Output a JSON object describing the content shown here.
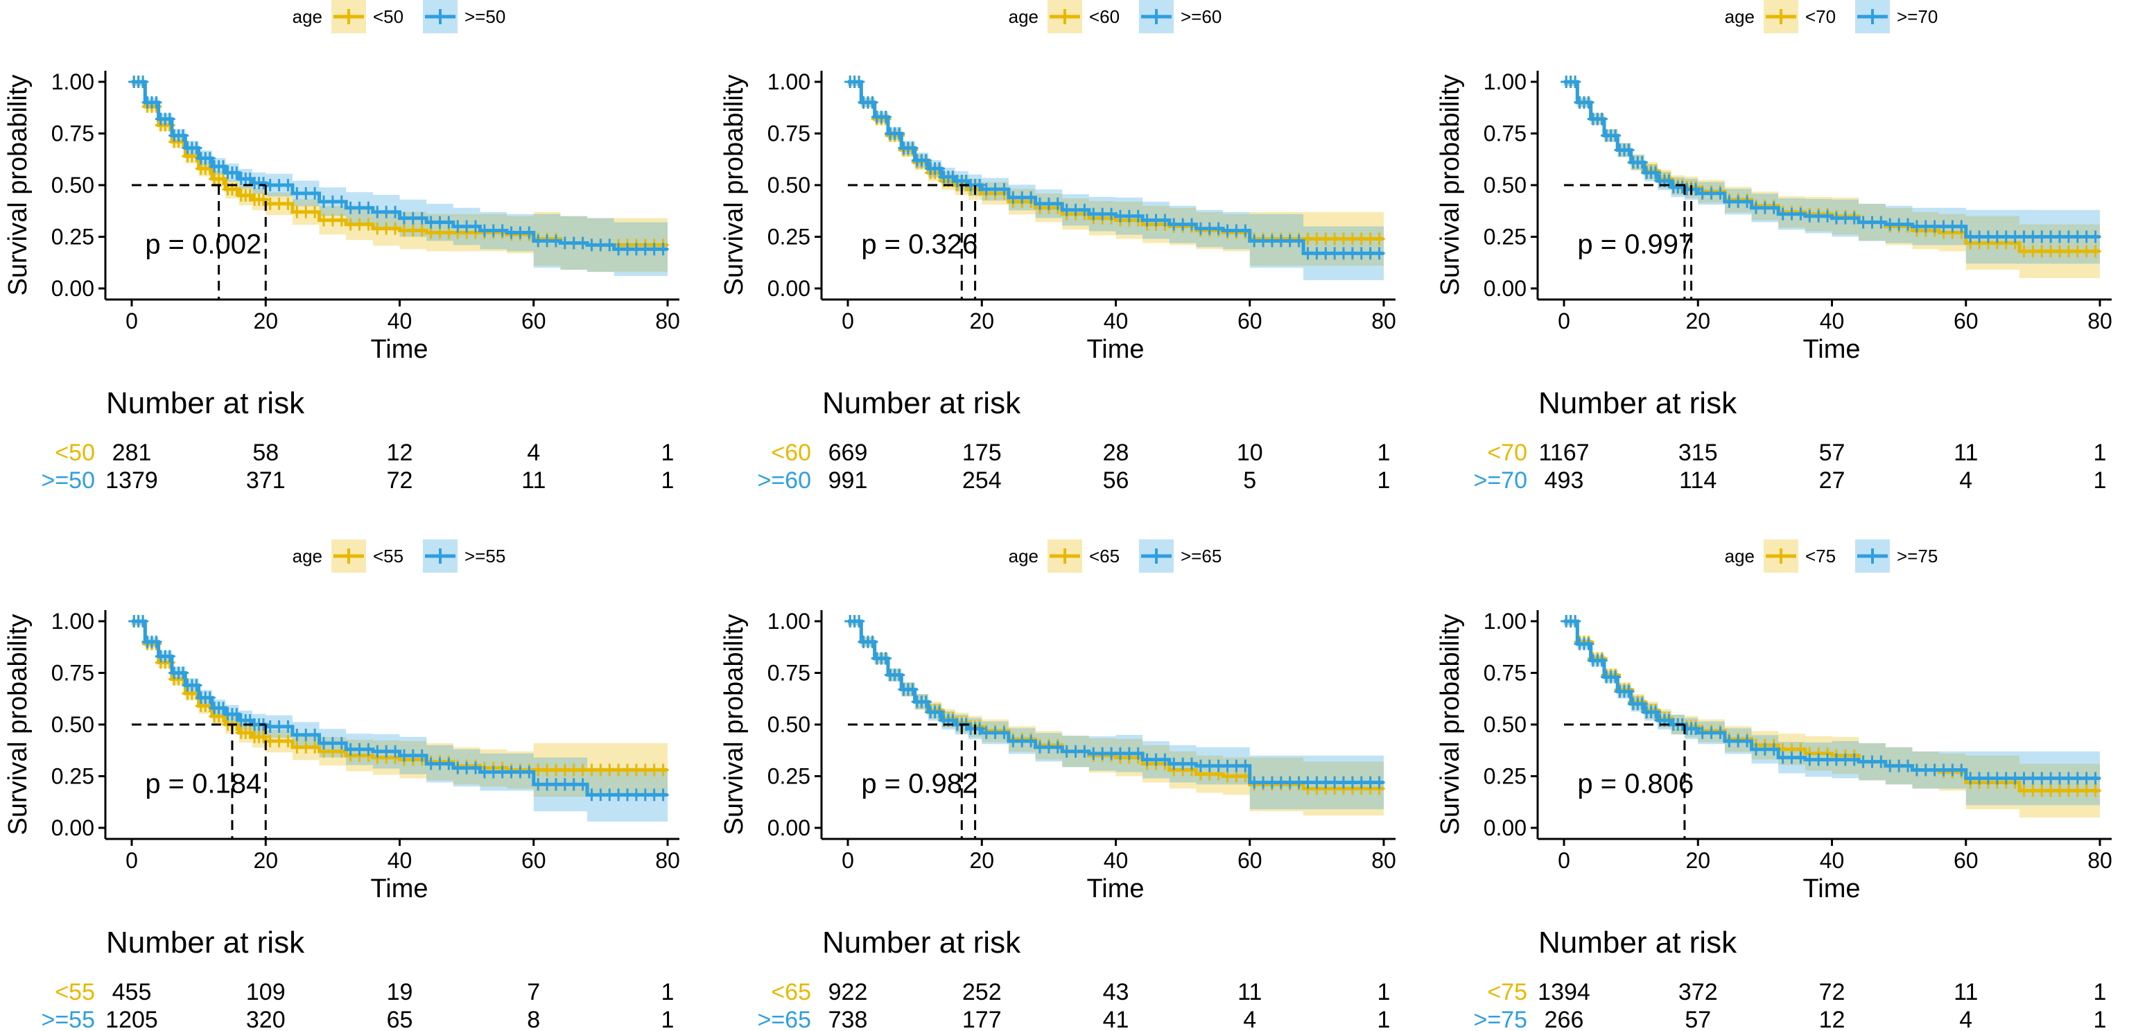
{
  "common": {
    "x_axis_label": "Time",
    "y_axis_label": "Survival probability",
    "legend_title": "age",
    "risk_table_title": "Number at risk",
    "x_ticks": [
      "0",
      "20",
      "40",
      "60",
      "80"
    ],
    "y_ticks": [
      "0.00",
      "0.25",
      "0.50",
      "0.75",
      "1.00"
    ],
    "colors": {
      "group1": "#E7B800",
      "group2": "#2E9FDF",
      "dash": "#000000",
      "axis": "#000000"
    }
  },
  "chart_data": [
    {
      "type": "line",
      "title": "",
      "xlabel": "Time",
      "ylabel": "Survival probability",
      "xlim": [
        0,
        80
      ],
      "ylim": [
        0,
        1
      ],
      "legend": [
        "<50",
        ">=50"
      ],
      "p_value": "p = 0.002",
      "medians": [
        13,
        20
      ],
      "series": [
        {
          "name": "<50",
          "x": [
            0,
            2,
            4,
            6,
            8,
            10,
            12,
            14,
            16,
            18,
            20,
            24,
            28,
            32,
            36,
            40,
            44,
            48,
            52,
            56,
            60,
            64,
            68,
            72,
            76,
            80
          ],
          "y": [
            1.0,
            0.88,
            0.79,
            0.71,
            0.64,
            0.58,
            0.53,
            0.48,
            0.45,
            0.43,
            0.41,
            0.37,
            0.33,
            0.31,
            0.29,
            0.28,
            0.27,
            0.27,
            0.27,
            0.26,
            0.24,
            0.22,
            0.21,
            0.21,
            0.21,
            0.21
          ]
        },
        {
          "name": ">=50",
          "x": [
            0,
            2,
            4,
            6,
            8,
            10,
            12,
            14,
            16,
            18,
            20,
            24,
            28,
            32,
            36,
            40,
            44,
            48,
            52,
            56,
            60,
            64,
            68,
            72,
            76,
            80
          ],
          "y": [
            1.0,
            0.9,
            0.82,
            0.74,
            0.68,
            0.63,
            0.59,
            0.56,
            0.53,
            0.51,
            0.5,
            0.46,
            0.42,
            0.39,
            0.37,
            0.34,
            0.32,
            0.3,
            0.28,
            0.27,
            0.23,
            0.22,
            0.21,
            0.19,
            0.19,
            0.19
          ]
        }
      ],
      "risk_table": {
        "times": [
          0,
          20,
          40,
          60,
          80
        ],
        "rows": [
          {
            "label": "<50",
            "values": [
              "281",
              "58",
              "12",
              "4",
              "1"
            ]
          },
          {
            "label": ">=50",
            "values": [
              "1379",
              "371",
              "72",
              "11",
              "1"
            ]
          }
        ]
      }
    },
    {
      "type": "line",
      "title": "",
      "xlabel": "Time",
      "ylabel": "Survival probability",
      "xlim": [
        0,
        80
      ],
      "ylim": [
        0,
        1
      ],
      "legend": [
        "<60",
        ">=60"
      ],
      "p_value": "p = 0.326",
      "medians": [
        17,
        19
      ],
      "series": [
        {
          "name": "<60",
          "x": [
            0,
            2,
            4,
            6,
            8,
            10,
            12,
            14,
            16,
            18,
            20,
            24,
            28,
            32,
            36,
            40,
            44,
            48,
            52,
            56,
            60,
            64,
            68,
            72,
            76,
            80
          ],
          "y": [
            1.0,
            0.9,
            0.82,
            0.74,
            0.67,
            0.61,
            0.56,
            0.52,
            0.5,
            0.48,
            0.46,
            0.42,
            0.39,
            0.36,
            0.34,
            0.33,
            0.31,
            0.3,
            0.28,
            0.27,
            0.24,
            0.24,
            0.24,
            0.24,
            0.24,
            0.24
          ]
        },
        {
          "name": ">=60",
          "x": [
            0,
            2,
            4,
            6,
            8,
            10,
            12,
            14,
            16,
            18,
            20,
            24,
            28,
            32,
            36,
            40,
            44,
            48,
            52,
            56,
            60,
            64,
            68,
            72,
            76,
            80
          ],
          "y": [
            1.0,
            0.9,
            0.83,
            0.75,
            0.68,
            0.62,
            0.58,
            0.54,
            0.52,
            0.5,
            0.48,
            0.44,
            0.41,
            0.38,
            0.36,
            0.35,
            0.33,
            0.31,
            0.29,
            0.28,
            0.23,
            0.23,
            0.17,
            0.17,
            0.17,
            0.17
          ]
        }
      ],
      "risk_table": {
        "times": [
          0,
          20,
          40,
          60,
          80
        ],
        "rows": [
          {
            "label": "<60",
            "values": [
              "669",
              "175",
              "28",
              "10",
              "1"
            ]
          },
          {
            "label": ">=60",
            "values": [
              "991",
              "254",
              "56",
              "5",
              "1"
            ]
          }
        ]
      }
    },
    {
      "type": "line",
      "title": "",
      "xlabel": "Time",
      "ylabel": "Survival probability",
      "xlim": [
        0,
        80
      ],
      "ylim": [
        0,
        1
      ],
      "legend": [
        "<70",
        ">=70"
      ],
      "p_value": "p = 0.997",
      "medians": [
        18,
        19
      ],
      "series": [
        {
          "name": "<70",
          "x": [
            0,
            2,
            4,
            6,
            8,
            10,
            12,
            14,
            16,
            18,
            20,
            24,
            28,
            32,
            36,
            40,
            44,
            48,
            52,
            56,
            60,
            64,
            68,
            72,
            76,
            80
          ],
          "y": [
            1.0,
            0.9,
            0.82,
            0.74,
            0.67,
            0.61,
            0.57,
            0.53,
            0.5,
            0.49,
            0.47,
            0.43,
            0.4,
            0.37,
            0.36,
            0.35,
            0.32,
            0.3,
            0.28,
            0.27,
            0.22,
            0.22,
            0.18,
            0.18,
            0.18,
            0.18
          ]
        },
        {
          "name": ">=70",
          "x": [
            0,
            2,
            4,
            6,
            8,
            10,
            12,
            14,
            16,
            18,
            20,
            24,
            28,
            32,
            36,
            40,
            44,
            48,
            52,
            56,
            60,
            64,
            68,
            72,
            76,
            80
          ],
          "y": [
            1.0,
            0.9,
            0.82,
            0.74,
            0.67,
            0.61,
            0.56,
            0.52,
            0.49,
            0.48,
            0.46,
            0.42,
            0.39,
            0.36,
            0.35,
            0.34,
            0.32,
            0.31,
            0.3,
            0.3,
            0.25,
            0.25,
            0.25,
            0.25,
            0.25,
            0.25
          ]
        }
      ],
      "risk_table": {
        "times": [
          0,
          20,
          40,
          60,
          80
        ],
        "rows": [
          {
            "label": "<70",
            "values": [
              "1167",
              "315",
              "57",
              "11",
              "1"
            ]
          },
          {
            "label": ">=70",
            "values": [
              "493",
              "114",
              "27",
              "4",
              "1"
            ]
          }
        ]
      }
    },
    {
      "type": "line",
      "title": "",
      "xlabel": "Time",
      "ylabel": "Survival probability",
      "xlim": [
        0,
        80
      ],
      "ylim": [
        0,
        1
      ],
      "legend": [
        "<55",
        ">=55"
      ],
      "p_value": "p = 0.184",
      "medians": [
        15,
        20
      ],
      "series": [
        {
          "name": "<55",
          "x": [
            0,
            2,
            4,
            6,
            8,
            10,
            12,
            14,
            16,
            18,
            20,
            24,
            28,
            32,
            36,
            40,
            44,
            48,
            52,
            56,
            60,
            64,
            68,
            72,
            76,
            80
          ],
          "y": [
            1.0,
            0.89,
            0.8,
            0.72,
            0.65,
            0.59,
            0.54,
            0.5,
            0.46,
            0.44,
            0.42,
            0.39,
            0.37,
            0.35,
            0.34,
            0.33,
            0.32,
            0.3,
            0.29,
            0.28,
            0.28,
            0.28,
            0.28,
            0.28,
            0.28,
            0.28
          ]
        },
        {
          "name": ">=55",
          "x": [
            0,
            2,
            4,
            6,
            8,
            10,
            12,
            14,
            16,
            18,
            20,
            24,
            28,
            32,
            36,
            40,
            44,
            48,
            52,
            56,
            60,
            64,
            68,
            72,
            76,
            80
          ],
          "y": [
            1.0,
            0.9,
            0.83,
            0.75,
            0.69,
            0.63,
            0.58,
            0.55,
            0.52,
            0.5,
            0.49,
            0.45,
            0.41,
            0.38,
            0.37,
            0.35,
            0.31,
            0.29,
            0.27,
            0.27,
            0.21,
            0.21,
            0.16,
            0.16,
            0.16,
            0.16
          ]
        }
      ],
      "risk_table": {
        "times": [
          0,
          20,
          40,
          60,
          80
        ],
        "rows": [
          {
            "label": "<55",
            "values": [
              "455",
              "109",
              "19",
              "7",
              "1"
            ]
          },
          {
            "label": ">=55",
            "values": [
              "1205",
              "320",
              "65",
              "8",
              "1"
            ]
          }
        ]
      }
    },
    {
      "type": "line",
      "title": "",
      "xlabel": "Time",
      "ylabel": "Survival probability",
      "xlim": [
        0,
        80
      ],
      "ylim": [
        0,
        1
      ],
      "legend": [
        "<65",
        ">=65"
      ],
      "p_value": "p = 0.982",
      "medians": [
        17,
        19
      ],
      "series": [
        {
          "name": "<65",
          "x": [
            0,
            2,
            4,
            6,
            8,
            10,
            12,
            14,
            16,
            18,
            20,
            24,
            28,
            32,
            36,
            40,
            44,
            48,
            52,
            56,
            60,
            64,
            68,
            72,
            76,
            80
          ],
          "y": [
            1.0,
            0.9,
            0.82,
            0.74,
            0.67,
            0.61,
            0.57,
            0.53,
            0.51,
            0.49,
            0.47,
            0.43,
            0.4,
            0.37,
            0.35,
            0.34,
            0.31,
            0.28,
            0.26,
            0.25,
            0.21,
            0.21,
            0.19,
            0.19,
            0.19,
            0.19
          ]
        },
        {
          "name": ">=65",
          "x": [
            0,
            2,
            4,
            6,
            8,
            10,
            12,
            14,
            16,
            18,
            20,
            24,
            28,
            32,
            36,
            40,
            44,
            48,
            52,
            56,
            60,
            64,
            68,
            72,
            76,
            80
          ],
          "y": [
            1.0,
            0.9,
            0.82,
            0.74,
            0.67,
            0.61,
            0.56,
            0.52,
            0.5,
            0.48,
            0.46,
            0.42,
            0.39,
            0.37,
            0.36,
            0.36,
            0.33,
            0.31,
            0.3,
            0.3,
            0.22,
            0.22,
            0.22,
            0.22,
            0.22,
            0.22
          ]
        }
      ],
      "risk_table": {
        "times": [
          0,
          20,
          40,
          60,
          80
        ],
        "rows": [
          {
            "label": "<65",
            "values": [
              "922",
              "252",
              "43",
              "11",
              "1"
            ]
          },
          {
            "label": ">=65",
            "values": [
              "738",
              "177",
              "41",
              "4",
              "1"
            ]
          }
        ]
      }
    },
    {
      "type": "line",
      "title": "",
      "xlabel": "Time",
      "ylabel": "Survival probability",
      "xlim": [
        0,
        80
      ],
      "ylim": [
        0,
        1
      ],
      "legend": [
        "<75",
        ">=75"
      ],
      "p_value": "p = 0.806",
      "medians": [
        18
      ],
      "series": [
        {
          "name": "<75",
          "x": [
            0,
            2,
            4,
            6,
            8,
            10,
            12,
            14,
            16,
            18,
            20,
            24,
            28,
            32,
            36,
            40,
            44,
            48,
            52,
            56,
            60,
            64,
            68,
            72,
            76,
            80
          ],
          "y": [
            1.0,
            0.9,
            0.82,
            0.74,
            0.67,
            0.61,
            0.57,
            0.53,
            0.5,
            0.49,
            0.47,
            0.43,
            0.4,
            0.38,
            0.36,
            0.35,
            0.32,
            0.3,
            0.28,
            0.27,
            0.22,
            0.22,
            0.18,
            0.18,
            0.18,
            0.18
          ]
        },
        {
          "name": ">=75",
          "x": [
            0,
            2,
            4,
            6,
            8,
            10,
            12,
            14,
            16,
            18,
            20,
            24,
            28,
            32,
            36,
            40,
            44,
            48,
            52,
            56,
            60,
            64,
            68,
            72,
            76,
            80
          ],
          "y": [
            1.0,
            0.89,
            0.81,
            0.73,
            0.66,
            0.6,
            0.56,
            0.52,
            0.5,
            0.48,
            0.46,
            0.42,
            0.38,
            0.34,
            0.33,
            0.33,
            0.32,
            0.3,
            0.28,
            0.28,
            0.24,
            0.24,
            0.24,
            0.24,
            0.24,
            0.24
          ]
        }
      ],
      "risk_table": {
        "times": [
          0,
          20,
          40,
          60,
          80
        ],
        "rows": [
          {
            "label": "<75",
            "values": [
              "1394",
              "372",
              "72",
              "11",
              "1"
            ]
          },
          {
            "label": ">=75",
            "values": [
              "266",
              "57",
              "12",
              "4",
              "1"
            ]
          }
        ]
      }
    }
  ]
}
